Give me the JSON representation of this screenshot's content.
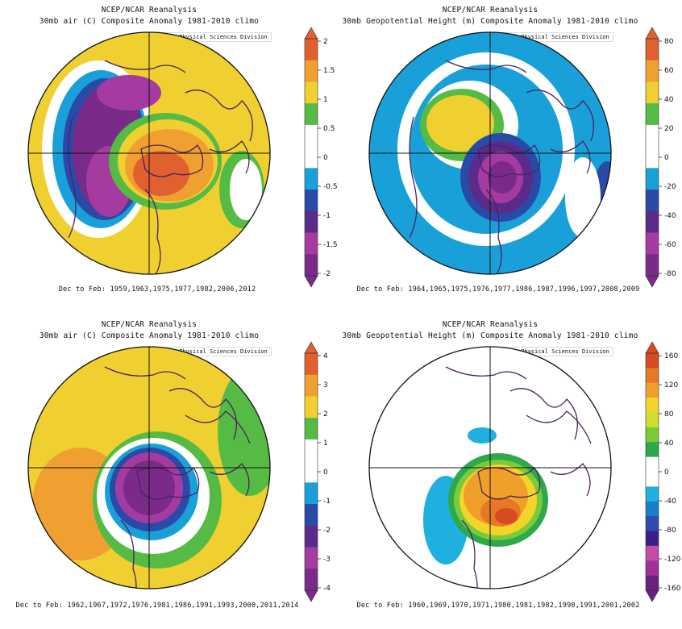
{
  "colors": {
    "land": "#4a2260",
    "ring": "#111111",
    "palette_10": [
      "#7a2b8a",
      "#a53aa0",
      "#5a2b8a",
      "#2a4aa8",
      "#1aa0d8",
      "#ffffff",
      "#55bb44",
      "#f0d030",
      "#f0a030",
      "#e06030"
    ],
    "palette_16": [
      "#6a2280",
      "#a0309a",
      "#c84aa8",
      "#3a1f88",
      "#2f4ab0",
      "#1780c8",
      "#20b0e0",
      "#ffffff",
      "#ffffff",
      "#2ea84a",
      "#7acb3a",
      "#d0dd30",
      "#f3d52a",
      "#f0a02a",
      "#e77826",
      "#d84a22"
    ]
  },
  "panels": [
    {
      "id": "tl",
      "title_line1": "NCEP/NCAR Reanalysis",
      "title_line2": "30mb air (C) Composite Anomaly 1981-2010 climo",
      "credit": "NOAA/ESRL Physical Sciences Division",
      "caption": "Dec to Feb: 1959,1963,1975,1977,1982,2006,2012",
      "colorbar": {
        "ticks": [
          "2",
          "1.5",
          "1",
          "0.5",
          "0",
          "-0.5",
          "-1",
          "-1.5",
          "-2"
        ],
        "colors": [
          "#e06030",
          "#f0a030",
          "#f0d030",
          "#55bb44",
          "#ffffff",
          "#ffffff",
          "#1aa0d8",
          "#2a4aa8",
          "#5a2b8a",
          "#a53aa0",
          "#7a2b8a"
        ]
      }
    },
    {
      "id": "tr",
      "title_line1": "NCEP/NCAR Reanalysis",
      "title_line2": "30mb Geopotential Height (m) Composite Anomaly 1981-2010 climo",
      "credit": "NOAA/ESRL Physical Sciences Division",
      "caption": "Dec to Feb: 1964,1965,1975,1976,1977,1986,1987,1996,1997,2008,2009",
      "colorbar": {
        "ticks": [
          "80",
          "60",
          "40",
          "20",
          "0",
          "-20",
          "-40",
          "-60",
          "-80"
        ],
        "colors": [
          "#e06030",
          "#f0a030",
          "#f0d030",
          "#55bb44",
          "#ffffff",
          "#ffffff",
          "#1aa0d8",
          "#2a4aa8",
          "#5a2b8a",
          "#a53aa0",
          "#7a2b8a"
        ]
      }
    },
    {
      "id": "bl",
      "title_line1": "NCEP/NCAR Reanalysis",
      "title_line2": "30mb air (C) Composite Anomaly 1981-2010 climo",
      "credit": "NOAA/ESRL Physical Sciences Division",
      "caption": "Dec to Feb: 1962,1967,1972,1976,1981,1986,1991,1993,2000,2011,2014",
      "colorbar": {
        "ticks": [
          "4",
          "3",
          "2",
          "1",
          "0",
          "-1",
          "-2",
          "-3",
          "-4"
        ],
        "colors": [
          "#e06030",
          "#f0a030",
          "#f0d030",
          "#55bb44",
          "#ffffff",
          "#ffffff",
          "#1aa0d8",
          "#2a4aa8",
          "#5a2b8a",
          "#a53aa0",
          "#7a2b8a"
        ]
      }
    },
    {
      "id": "br",
      "title_line1": "NCEP/NCAR Reanalysis",
      "title_line2": "30mb Geopotential Height (m) Composite Anomaly 1981-2010 climo",
      "credit": "NOAA/ESRL Physical Sciences Division",
      "caption": "Dec to Feb: 1960,1969,1970,1971,1980,1981,1982,1990,1991,2001,2002",
      "colorbar": {
        "ticks": [
          "160",
          "120",
          "80",
          "40",
          "0",
          "-40",
          "-80",
          "-120",
          "-160"
        ],
        "colors": [
          "#d84a22",
          "#e77826",
          "#f0a02a",
          "#f3d52a",
          "#d0dd30",
          "#7acb3a",
          "#2ea84a",
          "#ffffff",
          "#ffffff",
          "#20b0e0",
          "#1780c8",
          "#2f4ab0",
          "#3a1f88",
          "#c84aa8",
          "#a0309a",
          "#6a2280"
        ]
      }
    }
  ]
}
